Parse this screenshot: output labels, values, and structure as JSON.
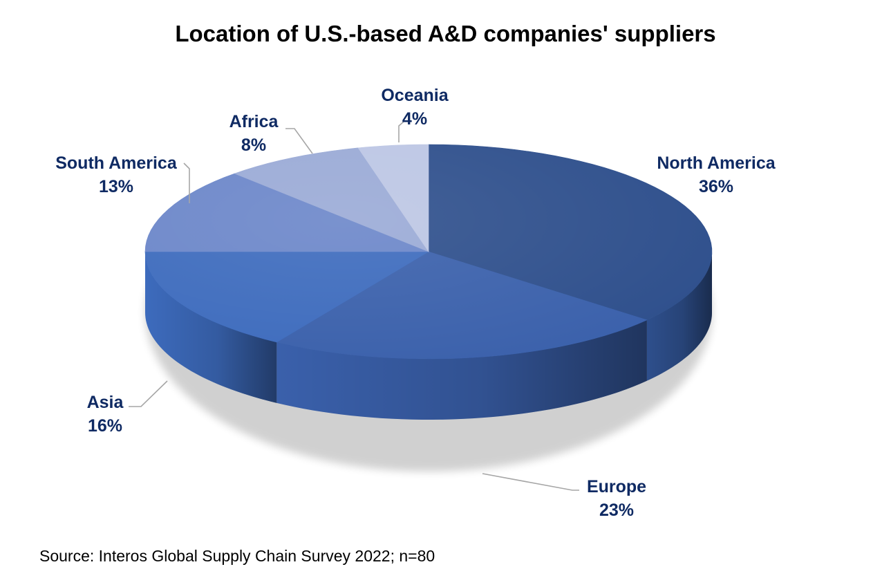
{
  "chart_data": {
    "type": "pie",
    "title": "Location of U.S.-based A&D companies' suppliers",
    "categories": [
      "North America",
      "Europe",
      "Asia",
      "South America",
      "Africa",
      "Oceania"
    ],
    "values": [
      36,
      23,
      16,
      13,
      8,
      4
    ],
    "value_labels": [
      "36%",
      "23%",
      "16%",
      "13%",
      "8%",
      "4%"
    ],
    "unit": "%",
    "colors": [
      "#2e4f8c",
      "#3a60ab",
      "#3d6bbd",
      "#6b86c9",
      "#9aaad6",
      "#bcc6e4"
    ],
    "label_color": "#0f2a63",
    "leader_line_color": "#a6a6a6",
    "legend": "none",
    "style": "3d-pie"
  },
  "source_note": "Source: Interos Global Supply Chain Survey 2022; n=80"
}
